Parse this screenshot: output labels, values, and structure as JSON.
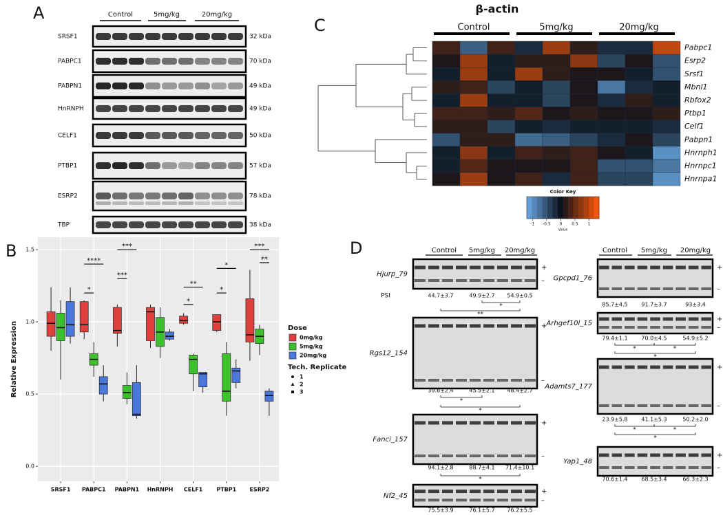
{
  "panel_labels": [
    "A",
    "B",
    "C",
    "D"
  ],
  "panel_a": {
    "groups": [
      "Control",
      "5mg/kg",
      "20mg/kg"
    ],
    "rows": [
      {
        "protein": "SRSF1",
        "size": "32 kDa"
      },
      {
        "protein": "PABPC1",
        "size": "70 kDa"
      },
      {
        "protein": "PABPN1",
        "size": "49 kDa"
      },
      {
        "protein": "HnRNPH",
        "size": "49 kDa"
      },
      {
        "protein": "CELF1",
        "size": "50 kDa"
      },
      {
        "protein": "PTBP1",
        "size": "57 kDa"
      },
      {
        "protein": "ESRP2",
        "size": "78 kDa"
      },
      {
        "protein": "TBP",
        "size": "38 kDa"
      }
    ]
  },
  "chart_data": [
    {
      "type": "box",
      "y_label": "Relative Expression",
      "categories": [
        "SRSF1",
        "PABPC1",
        "PABPN1",
        "HnRNPH",
        "CELF1",
        "PTBP1",
        "ESRP2"
      ],
      "ylim": [
        -0.104,
        1.586
      ],
      "yticks": [
        {
          "value": 0,
          "label": "0.0"
        },
        {
          "value": 0.5,
          "label": "0.5"
        },
        {
          "value": 1,
          "label": "1.0"
        },
        {
          "value": 1.5,
          "label": "1.5"
        }
      ],
      "grid": true,
      "legend_title": "Dose",
      "series": [
        {
          "name": "0mg/kg",
          "color": "#e0403c",
          "values": [
            {
              "min": 0.8,
              "q1": 0.9,
              "median": 0.99,
              "q3": 1.07,
              "max": 1.24
            },
            {
              "min": 0.88,
              "q1": 0.93,
              "median": 0.98,
              "q3": 1.14,
              "max": 1.15
            },
            {
              "min": 0.83,
              "q1": 0.92,
              "median": 0.94,
              "q3": 1.1,
              "max": 1.12
            },
            {
              "min": 0.82,
              "q1": 0.87,
              "median": 1.07,
              "q3": 1.1,
              "max": 1.12
            },
            {
              "min": 0.98,
              "q1": 0.99,
              "median": 1.01,
              "q3": 1.04,
              "max": 1.06
            },
            {
              "min": 0.93,
              "q1": 0.94,
              "median": 1.0,
              "q3": 1.05,
              "max": 1.05
            },
            {
              "min": 0.73,
              "q1": 0.86,
              "median": 0.91,
              "q3": 1.16,
              "max": 1.36
            }
          ]
        },
        {
          "name": "5mg/kg",
          "color": "#3cc02c",
          "values": [
            {
              "min": 0.6,
              "q1": 0.87,
              "median": 0.96,
              "q3": 1.06,
              "max": 1.15
            },
            {
              "min": 0.62,
              "q1": 0.7,
              "median": 0.74,
              "q3": 0.78,
              "max": 0.86
            },
            {
              "min": 0.43,
              "q1": 0.47,
              "median": 0.51,
              "q3": 0.56,
              "max": 0.65
            },
            {
              "min": 0.75,
              "q1": 0.83,
              "median": 0.93,
              "q3": 1.03,
              "max": 1.1
            },
            {
              "min": 0.52,
              "q1": 0.64,
              "median": 0.74,
              "q3": 0.77,
              "max": 0.78
            },
            {
              "min": 0.35,
              "q1": 0.45,
              "median": 0.52,
              "q3": 0.78,
              "max": 0.86
            },
            {
              "min": 0.77,
              "q1": 0.85,
              "median": 0.9,
              "q3": 0.95,
              "max": 0.98
            }
          ]
        },
        {
          "name": "20mg/kg",
          "color": "#4a78dc",
          "values": [
            {
              "min": 0.85,
              "q1": 0.9,
              "median": 0.98,
              "q3": 1.14,
              "max": 1.24
            },
            {
              "min": 0.45,
              "q1": 0.5,
              "median": 0.57,
              "q3": 0.62,
              "max": 0.7
            },
            {
              "min": 0.33,
              "q1": 0.35,
              "median": 0.36,
              "q3": 0.58,
              "max": 0.7
            },
            {
              "min": 0.87,
              "q1": 0.88,
              "median": 0.9,
              "q3": 0.93,
              "max": 0.95
            },
            {
              "min": 0.51,
              "q1": 0.55,
              "median": 0.64,
              "q3": 0.65,
              "max": 0.65
            },
            {
              "min": 0.54,
              "q1": 0.58,
              "median": 0.66,
              "q3": 0.68,
              "max": 0.74
            },
            {
              "min": 0.35,
              "q1": 0.45,
              "median": 0.49,
              "q3": 0.52,
              "max": 0.54
            }
          ]
        }
      ],
      "annotations": [
        "****",
        "*",
        "***",
        "***",
        "**",
        "*",
        "*",
        "*",
        "***",
        "**"
      ],
      "replicate_title": "Tech. Replicate",
      "replicates": [
        "1",
        "2",
        "3"
      ]
    },
    {
      "type": "heatmap",
      "title": "β-actin",
      "column_groups": [
        "Control",
        "5mg/kg",
        "20mg/kg"
      ],
      "rows": [
        "Pabpc1",
        "Esrp2",
        "Srsf1",
        "Mbnl1",
        "Rbfox2",
        "Ptbp1",
        "Celf1",
        "Pabpn1",
        "Hnrnph1",
        "Hnrnpc1",
        "Hnrnpa1"
      ],
      "values": [
        [
          0.3,
          -0.6,
          0.3,
          -0.2,
          0.8,
          0.2,
          -0.2,
          -0.2,
          1.0
        ],
        [
          0.1,
          0.8,
          -0.1,
          0.2,
          0.2,
          0.7,
          -0.4,
          0.1,
          -0.5
        ],
        [
          -0.1,
          0.8,
          -0.1,
          0.8,
          0.2,
          0.1,
          0.1,
          -0.1,
          -0.5
        ],
        [
          0.2,
          0.3,
          -0.4,
          -0.1,
          -0.4,
          0.1,
          -0.8,
          -0.2,
          -0.1
        ],
        [
          -0.1,
          0.8,
          -0.1,
          -0.1,
          -0.4,
          0.1,
          -0.2,
          0.2,
          -0.1
        ],
        [
          0.3,
          0.3,
          0.2,
          0.4,
          0.1,
          0.2,
          0.1,
          0.1,
          0.2
        ],
        [
          0.2,
          0.2,
          -0.4,
          -0.1,
          -0.2,
          -0.1,
          -0.1,
          -0.1,
          -0.2
        ],
        [
          -0.5,
          0.2,
          0.2,
          -0.7,
          -0.6,
          -0.4,
          -0.2,
          0.1,
          -0.4
        ],
        [
          -0.1,
          0.7,
          -0.1,
          0.3,
          0.2,
          0.3,
          0.1,
          -0.1,
          -1.0
        ],
        [
          -0.1,
          0.4,
          0.1,
          0.1,
          0.1,
          0.3,
          -0.5,
          -0.5,
          -0.8
        ],
        [
          0.1,
          0.8,
          0.1,
          0.3,
          -0.2,
          0.3,
          -0.4,
          -0.4,
          -1.0
        ]
      ],
      "color_lim": [
        -1.2,
        1.35
      ],
      "colors": {
        "low": "#6aaae6",
        "mid": "#0b121c",
        "high": "#ff5a0a"
      },
      "key_title": "Color Key",
      "key_label": "Value",
      "key_ticks": [
        -1,
        -0.5,
        0,
        0.5,
        1
      ]
    }
  ],
  "panel_d": {
    "psi_label": "PSI",
    "plus": "+",
    "minus": "–",
    "columns": [
      {
        "groups": [
          "Control",
          "5mg/kg",
          "20mg/kg"
        ],
        "gels": [
          {
            "name": "Hjurp_79",
            "psi": [
              "44.7±3.7",
              "49.9±2.7",
              "54.9±0.5"
            ],
            "significance": [
              "*",
              "**"
            ]
          },
          {
            "name": "Rgs12_154",
            "psi": [
              "39.6±2.4",
              "45.5±2.1",
              "48.4±2.7"
            ],
            "significance": [
              "*",
              "*"
            ]
          },
          {
            "name": "Fanci_157",
            "psi": [
              "94.1±2.8",
              "88.7±4.1",
              "71.4±10.1"
            ],
            "significance": [
              "*"
            ]
          },
          {
            "name": "Nf2_45",
            "psi": [
              "75.5±3.9",
              "76.1±5.7",
              "76.2±5.5"
            ],
            "significance": []
          }
        ]
      },
      {
        "groups": [
          "Control",
          "5mg/kg",
          "20mg/kg"
        ],
        "gels": [
          {
            "name": "Gpcpd1_76",
            "psi": [
              "85.7±4.5",
              "91.7±3.7",
              "93±3.4"
            ],
            "significance": []
          },
          {
            "name": "Arhgef10l_15",
            "psi": [
              "79.4±1.1",
              "70.0±4.5",
              "54.9±5.2"
            ],
            "significance": [
              "*",
              "*",
              "*"
            ]
          },
          {
            "name": "Adamts7_177",
            "psi": [
              "23.9±5.8",
              "41.1±5.3",
              "50.2±2.0"
            ],
            "significance": [
              "*",
              "*",
              "*"
            ]
          },
          {
            "name": "Yap1_48",
            "psi": [
              "70.6±1.4",
              "68.5±3.4",
              "66.3±2.3"
            ],
            "significance": []
          }
        ]
      }
    ]
  }
}
